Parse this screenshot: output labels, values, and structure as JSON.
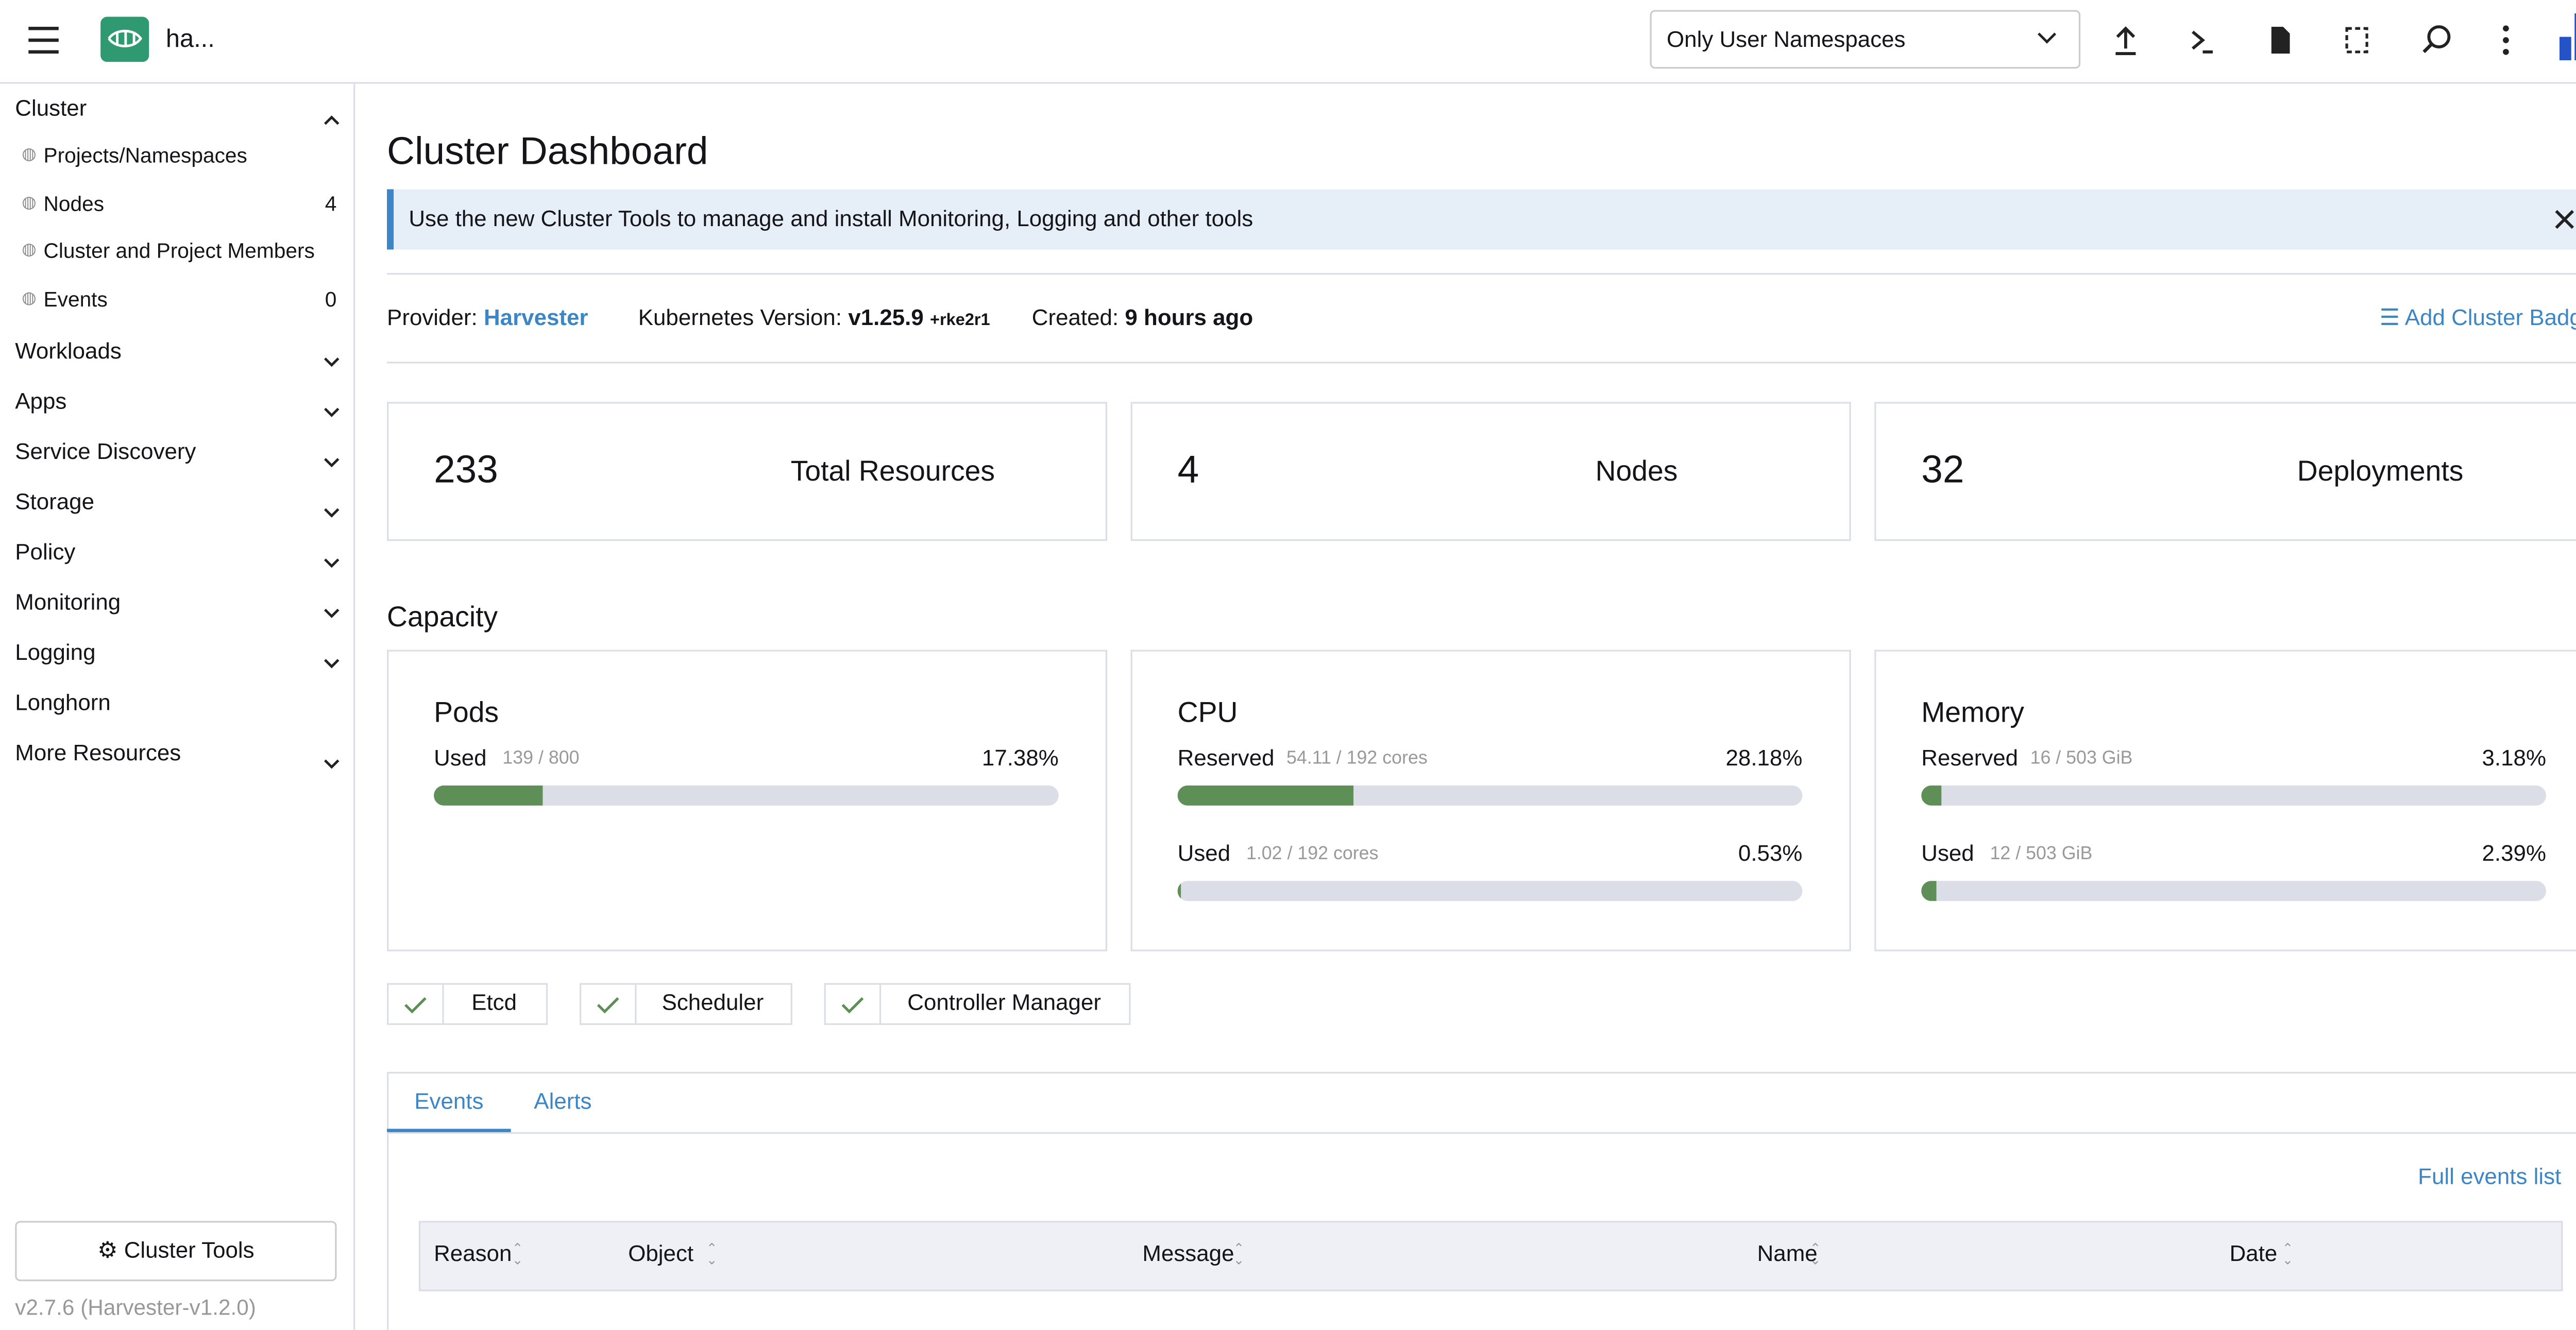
{
  "header": {
    "cluster_name": "ha...",
    "namespace_filter": "Only User Namespaces"
  },
  "sidebar": {
    "groups": [
      {
        "label": "Cluster",
        "expanded": true,
        "items": [
          {
            "label": "Projects/Namespaces"
          },
          {
            "label": "Nodes",
            "count": 4
          },
          {
            "label": "Cluster and Project Members"
          },
          {
            "label": "Events",
            "count": 0
          }
        ]
      },
      {
        "label": "Workloads",
        "expanded": false
      },
      {
        "label": "Apps",
        "expanded": false
      },
      {
        "label": "Service Discovery",
        "expanded": false
      },
      {
        "label": "Storage",
        "expanded": false
      },
      {
        "label": "Policy",
        "expanded": false
      },
      {
        "label": "Monitoring",
        "expanded": false
      },
      {
        "label": "Logging",
        "expanded": false
      },
      {
        "label": "Longhorn"
      },
      {
        "label": "More Resources",
        "expanded": false
      }
    ],
    "tools_button": "Cluster Tools",
    "version": "v2.7.6",
    "version_detail": "(Harvester-v1.2.0)"
  },
  "main": {
    "title": "Cluster Dashboard",
    "banner": "Use the new Cluster Tools to manage and install Monitoring, Logging and other tools",
    "provider_label": "Provider:",
    "provider": "Harvester",
    "k8s_label": "Kubernetes Version:",
    "k8s_version": "v1.25.9",
    "k8s_suffix": "+rke2r1",
    "created_label": "Created:",
    "created": "9 hours ago",
    "badge_link": "Add Cluster Badge",
    "stats": [
      {
        "value": 233,
        "label": "Total Resources"
      },
      {
        "value": 4,
        "label": "Nodes"
      },
      {
        "value": 32,
        "label": "Deployments"
      }
    ],
    "capacity_title": "Capacity",
    "capacity": [
      {
        "title": "Pods",
        "rows": [
          {
            "label": "Used",
            "detail": "139 / 800",
            "percent": 17.38,
            "percent_label": "17.38%"
          }
        ]
      },
      {
        "title": "CPU",
        "rows": [
          {
            "label": "Reserved",
            "detail": "54.11 / 192 cores",
            "percent": 28.18,
            "percent_label": "28.18%"
          },
          {
            "label": "Used",
            "detail": "1.02 / 192 cores",
            "percent": 0.53,
            "percent_label": "0.53%"
          }
        ]
      },
      {
        "title": "Memory",
        "rows": [
          {
            "label": "Reserved",
            "detail": "16 / 503 GiB",
            "percent": 3.18,
            "percent_label": "3.18%"
          },
          {
            "label": "Used",
            "detail": "12 / 503 GiB",
            "percent": 2.39,
            "percent_label": "2.39%"
          }
        ]
      }
    ],
    "components": [
      "Etcd",
      "Scheduler",
      "Controller Manager"
    ],
    "tabs": [
      "Events",
      "Alerts"
    ],
    "full_events": "Full events list",
    "columns": [
      "Reason",
      "Object",
      "Message",
      "Name",
      "Date"
    ]
  }
}
